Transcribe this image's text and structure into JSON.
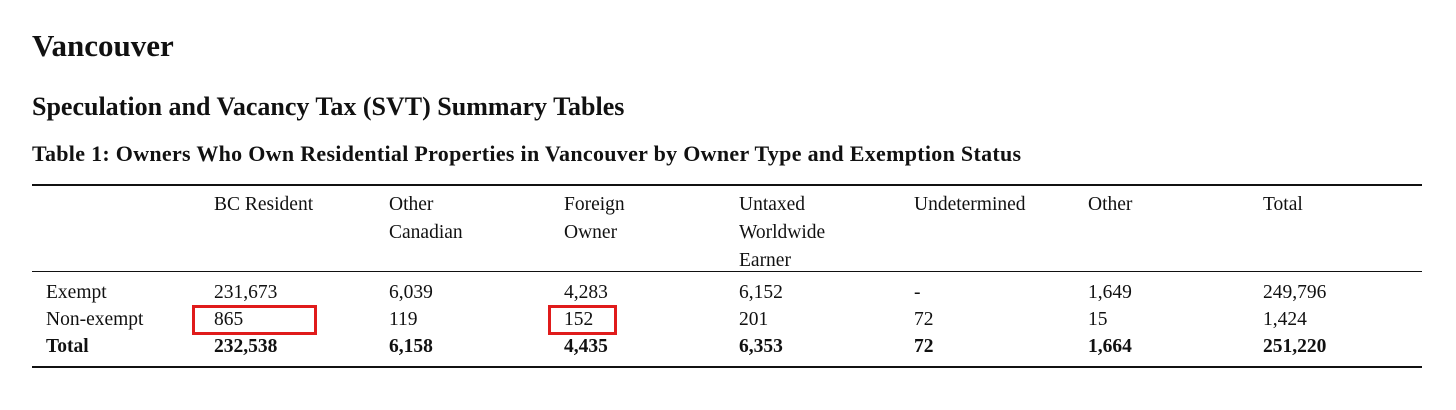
{
  "document": {
    "title": "Vancouver",
    "subtitle": "Speculation and Vacancy Tax (SVT) Summary Tables",
    "table": {
      "caption": "Table 1: Owners Who Own Residential Properties in Vancouver by Owner Type and Exemption Status",
      "columns": [
        [
          "BC Resident"
        ],
        [
          "Other",
          "Canadian"
        ],
        [
          "Foreign",
          "Owner"
        ],
        [
          "Untaxed",
          "Worldwide",
          "Earner"
        ],
        [
          "Undetermined"
        ],
        [
          "Other"
        ],
        [
          "Total"
        ]
      ],
      "rows": [
        [
          "Exempt",
          "231,673",
          "6,039",
          "4,283",
          "6,152",
          "-",
          "1,649",
          "249,796"
        ],
        [
          "Non-exempt",
          "865",
          "119",
          "152",
          "201",
          "72",
          "15",
          "1,424"
        ],
        [
          "Total",
          "232,538",
          "6,158",
          "4,435",
          "6,353",
          "72",
          "1,664",
          "251,220"
        ]
      ]
    }
  }
}
